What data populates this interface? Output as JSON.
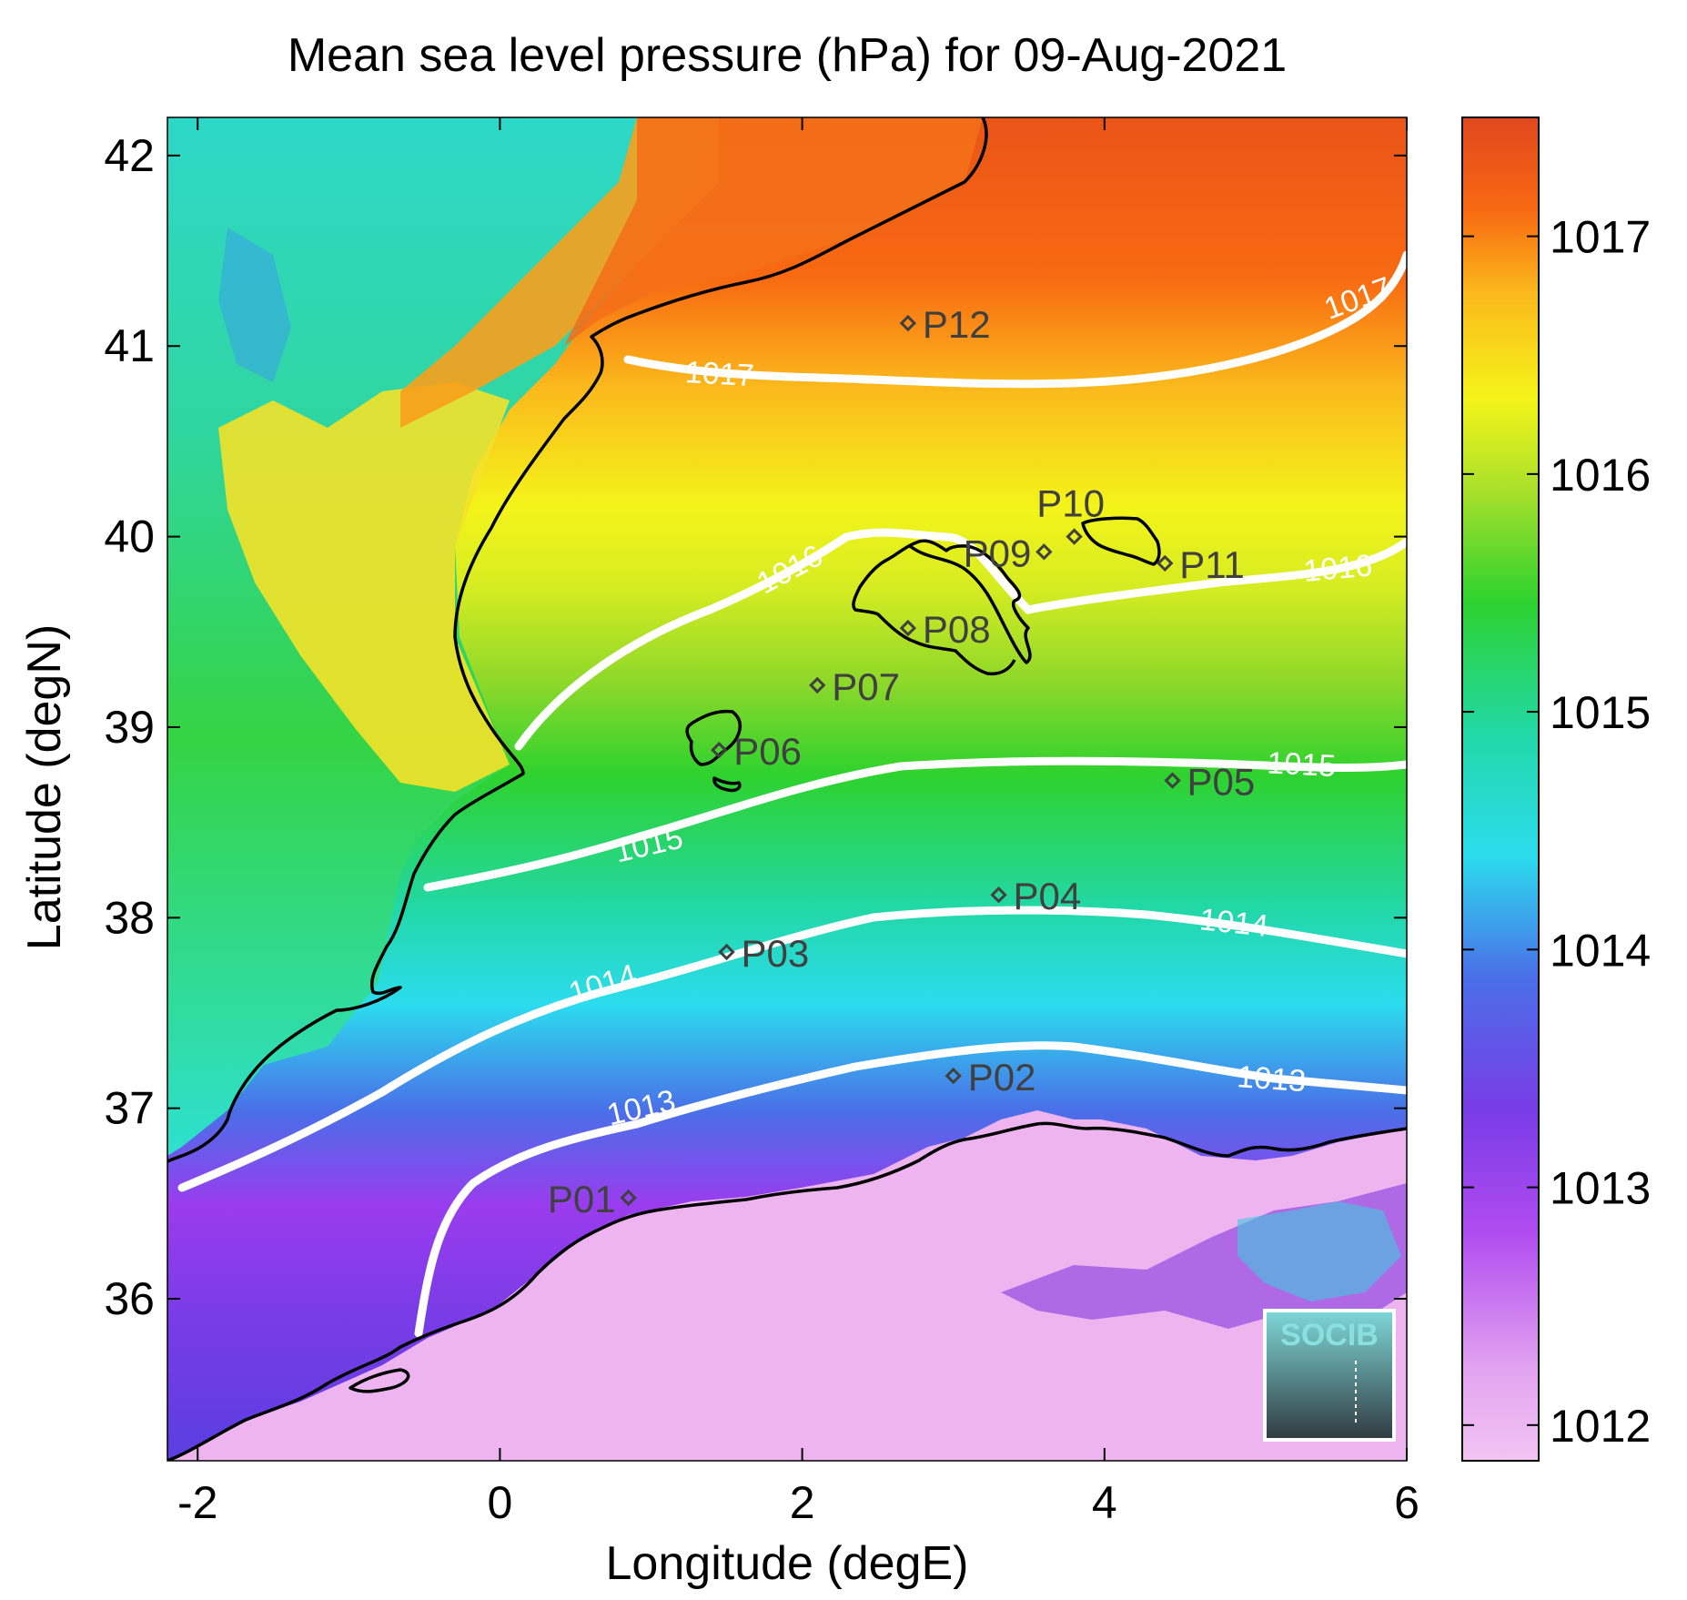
{
  "title": "Mean sea level pressure (hPa) for 09-Aug-2021",
  "x_axis": {
    "label": "Longitude (degE)",
    "min": -2.2,
    "max": 6.0,
    "ticks": [
      -2,
      0,
      2,
      4,
      6
    ],
    "tick_labels": [
      "-2",
      "0",
      "2",
      "4",
      "6"
    ]
  },
  "y_axis": {
    "label": "Latitude (degN)",
    "min": 35.15,
    "max": 42.2,
    "ticks": [
      36,
      37,
      38,
      39,
      40,
      41,
      42
    ],
    "tick_labels": [
      "36",
      "37",
      "38",
      "39",
      "40",
      "41",
      "42"
    ]
  },
  "colorbar": {
    "min": 1011.85,
    "max": 1017.5,
    "ticks": [
      1012,
      1013,
      1014,
      1015,
      1016,
      1017
    ],
    "tick_labels": [
      "1012",
      "1013",
      "1014",
      "1015",
      "1016",
      "1017"
    ]
  },
  "contour_labels": [
    {
      "text": "1017",
      "lon": 1.45,
      "lat": 40.8,
      "angle": 3
    },
    {
      "text": "1017",
      "lon": 5.7,
      "lat": 41.2,
      "angle": -20
    },
    {
      "text": "1016",
      "lon": 1.95,
      "lat": 39.78,
      "angle": -28
    },
    {
      "text": "1016",
      "lon": 5.55,
      "lat": 39.78,
      "angle": -5
    },
    {
      "text": "1015",
      "lon": 1.0,
      "lat": 38.33,
      "angle": -13
    },
    {
      "text": "1015",
      "lon": 5.3,
      "lat": 38.75,
      "angle": 3
    },
    {
      "text": "1014",
      "lon": 0.7,
      "lat": 37.6,
      "angle": -17
    },
    {
      "text": "1014",
      "lon": 4.85,
      "lat": 37.92,
      "angle": 6
    },
    {
      "text": "1013",
      "lon": 0.95,
      "lat": 36.95,
      "angle": -13
    },
    {
      "text": "1013",
      "lon": 5.1,
      "lat": 37.1,
      "angle": 4
    }
  ],
  "points": [
    {
      "id": "P01",
      "lon": 0.85,
      "lat": 36.53,
      "label_side": "left"
    },
    {
      "id": "P02",
      "lon": 3.0,
      "lat": 37.17,
      "label_side": "right"
    },
    {
      "id": "P03",
      "lon": 1.5,
      "lat": 37.82,
      "label_side": "right"
    },
    {
      "id": "P04",
      "lon": 3.3,
      "lat": 38.12,
      "label_side": "right"
    },
    {
      "id": "P05",
      "lon": 4.45,
      "lat": 38.72,
      "label_side": "right"
    },
    {
      "id": "P06",
      "lon": 1.45,
      "lat": 38.88,
      "label_side": "right"
    },
    {
      "id": "P07",
      "lon": 2.1,
      "lat": 39.22,
      "label_side": "right"
    },
    {
      "id": "P08",
      "lon": 2.7,
      "lat": 39.52,
      "label_side": "right"
    },
    {
      "id": "P09",
      "lon": 3.6,
      "lat": 39.92,
      "label_side": "left"
    },
    {
      "id": "P10",
      "lon": 3.8,
      "lat": 40.0,
      "label_side": "above"
    },
    {
      "id": "P11",
      "lon": 4.4,
      "lat": 39.86,
      "label_side": "right"
    },
    {
      "id": "P12",
      "lon": 2.7,
      "lat": 41.12,
      "label_side": "right"
    }
  ],
  "logo": {
    "text": "SOCIB"
  },
  "colors": {
    "contour": "#ffffff",
    "coast": "#000000",
    "marker": "#404040"
  }
}
